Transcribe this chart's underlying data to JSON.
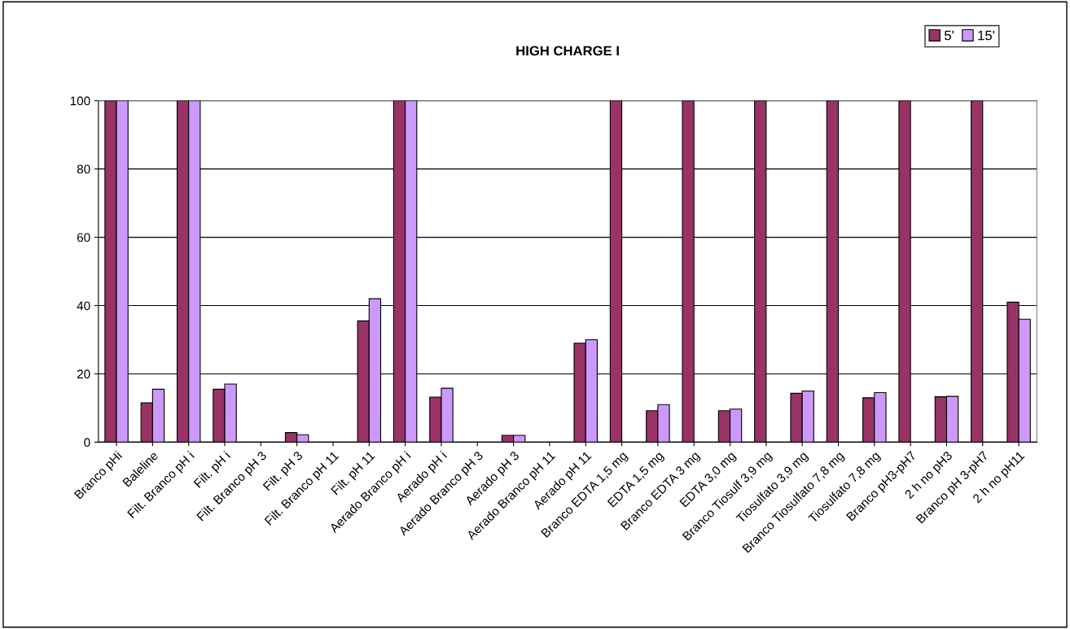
{
  "chart_data": {
    "type": "bar",
    "title": "HIGH CHARGE I",
    "categories": [
      "Branco pHi",
      "Baleline",
      "Filt. Branco pH i",
      "Filt. pH i",
      "Filt. Branco pH 3",
      "Filt. pH 3",
      "Filt. Branco pH 11",
      "Filt. pH 11",
      "Aerado Branco pH i",
      "Aerado pH i",
      "Aerado Branco pH 3",
      "Aerado pH 3",
      "Aerado Branco pH 11",
      "Aerado pH 11",
      "Branco EDTA 1,5 mg",
      "EDTA 1,5 mg",
      "Branco EDTA 3 mg",
      "EDTA 3,0 mg",
      "Branco Tiosulf 3,9 mg",
      "Tiosulfato 3,9 mg",
      "Branco Tiosulfato 7,8 mg",
      "Tiosulfato 7,8 mg",
      "Branco pH3-pH7",
      "2 h no pH3",
      "Branco pH 3-pH7",
      "2 h no pH11"
    ],
    "series": [
      {
        "name": "5'",
        "color": "#993366",
        "values": [
          100,
          11.5,
          100,
          15.5,
          null,
          2.8,
          null,
          35.5,
          100,
          13.2,
          null,
          2,
          null,
          29,
          100,
          9.2,
          100,
          9.2,
          100,
          14.3,
          100,
          13,
          100,
          13.3,
          100,
          41
        ]
      },
      {
        "name": "15'",
        "color": "#cc99ff",
        "values": [
          100,
          15.5,
          100,
          17,
          null,
          2.2,
          null,
          42,
          100,
          15.8,
          null,
          2,
          null,
          30,
          null,
          11,
          null,
          9.7,
          null,
          15,
          null,
          14.5,
          null,
          13.4,
          null,
          36
        ]
      }
    ],
    "ylim": [
      0,
      100
    ],
    "yticks": [
      0,
      20,
      40,
      60,
      80,
      100
    ],
    "grid": "y",
    "legend": "top right"
  }
}
